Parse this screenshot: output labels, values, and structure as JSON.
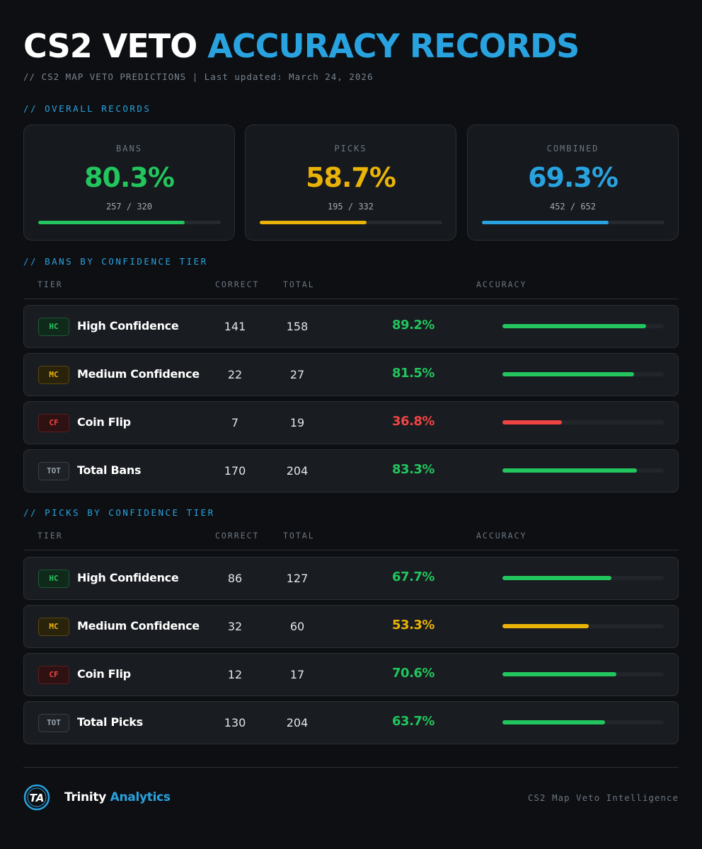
{
  "header": {
    "title_white": "CS2 VETO",
    "title_blue": "ACCURACY RECORDS",
    "subtitle": "// CS2 MAP VETO PREDICTIONS | Last updated: March 24, 2026"
  },
  "sections": {
    "overall": "// OVERALL RECORDS",
    "bans": "// BANS BY CONFIDENCE TIER",
    "picks": "// PICKS BY CONFIDENCE TIER"
  },
  "colors": {
    "green": "#22c55e",
    "yellow": "#eab308",
    "red": "#ef4444",
    "blue": "#29a3e0"
  },
  "overall": [
    {
      "label": "BANS",
      "pct": "80.3%",
      "frac": "257 / 320",
      "value": 80.3,
      "color": "#22c55e"
    },
    {
      "label": "PICKS",
      "pct": "58.7%",
      "frac": "195 / 332",
      "value": 58.7,
      "color": "#eab308"
    },
    {
      "label": "COMBINED",
      "pct": "69.3%",
      "frac": "452 / 652",
      "value": 69.3,
      "color": "#29a3e0"
    }
  ],
  "table_headers": {
    "tier": "TIER",
    "correct": "CORRECT",
    "total": "TOTAL",
    "accuracy": "ACCURACY"
  },
  "bans": [
    {
      "badge": "HC",
      "kind": "hc",
      "tier": "High Confidence",
      "correct": "141",
      "total": "158",
      "accuracy": "89.2%",
      "value": 89.2,
      "color": "#22c55e"
    },
    {
      "badge": "MC",
      "kind": "mc",
      "tier": "Medium Confidence",
      "correct": "22",
      "total": "27",
      "accuracy": "81.5%",
      "value": 81.5,
      "color": "#22c55e"
    },
    {
      "badge": "CF",
      "kind": "cf",
      "tier": "Coin Flip",
      "correct": "7",
      "total": "19",
      "accuracy": "36.8%",
      "value": 36.8,
      "color": "#ef4444"
    },
    {
      "badge": "TOT",
      "kind": "tot",
      "tier": "Total Bans",
      "correct": "170",
      "total": "204",
      "accuracy": "83.3%",
      "value": 83.3,
      "color": "#22c55e"
    }
  ],
  "picks": [
    {
      "badge": "HC",
      "kind": "hc",
      "tier": "High Confidence",
      "correct": "86",
      "total": "127",
      "accuracy": "67.7%",
      "value": 67.7,
      "color": "#22c55e"
    },
    {
      "badge": "MC",
      "kind": "mc",
      "tier": "Medium Confidence",
      "correct": "32",
      "total": "60",
      "accuracy": "53.3%",
      "value": 53.3,
      "color": "#eab308"
    },
    {
      "badge": "CF",
      "kind": "cf",
      "tier": "Coin Flip",
      "correct": "12",
      "total": "17",
      "accuracy": "70.6%",
      "value": 70.6,
      "color": "#22c55e"
    },
    {
      "badge": "TOT",
      "kind": "tot",
      "tier": "Total Picks",
      "correct": "130",
      "total": "204",
      "accuracy": "63.7%",
      "value": 63.7,
      "color": "#22c55e"
    }
  ],
  "footer": {
    "brand_white": "Trinity",
    "brand_blue": "Analytics",
    "logo_text": "TA",
    "tagline": "CS2 Map Veto Intelligence"
  }
}
